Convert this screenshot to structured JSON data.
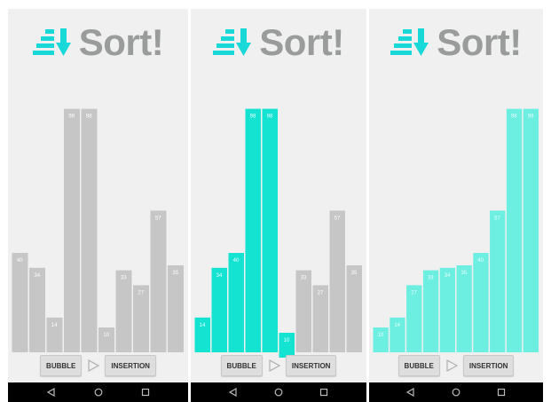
{
  "app": {
    "title": "Sort!"
  },
  "colors": {
    "background": "#f0f0f0",
    "bar_default": "#c6c6c6",
    "bar_active": "#13e3d0",
    "bar_sorted": "#6ceee0",
    "logo_icon": "#19d8d8",
    "logo_text": "#9a9c9c",
    "navbar": "#000000"
  },
  "controls": {
    "bubble_label": "BUBBLE",
    "insertion_label": "INSERTION",
    "play_icon": "play-outline-icon"
  },
  "navbar": {
    "icons": [
      "back-icon",
      "home-icon",
      "recents-icon"
    ]
  },
  "screens": [
    {
      "name": "initial",
      "bars": [
        {
          "value": 40,
          "state": "default"
        },
        {
          "value": 34,
          "state": "default"
        },
        {
          "value": 14,
          "state": "default"
        },
        {
          "value": 98,
          "state": "default"
        },
        {
          "value": 98,
          "state": "default"
        },
        {
          "value": 10,
          "state": "default"
        },
        {
          "value": 33,
          "state": "default"
        },
        {
          "value": 27,
          "state": "default"
        },
        {
          "value": 57,
          "state": "default"
        },
        {
          "value": 35,
          "state": "default"
        }
      ]
    },
    {
      "name": "sorting",
      "bars": [
        {
          "value": 14,
          "state": "active"
        },
        {
          "value": 34,
          "state": "active"
        },
        {
          "value": 40,
          "state": "active"
        },
        {
          "value": 98,
          "state": "active"
        },
        {
          "value": 98,
          "state": "active"
        },
        {
          "value": 10,
          "state": "active",
          "dropped": true
        },
        {
          "value": 33,
          "state": "default"
        },
        {
          "value": 27,
          "state": "default"
        },
        {
          "value": 57,
          "state": "default"
        },
        {
          "value": 35,
          "state": "default"
        }
      ]
    },
    {
      "name": "sorted",
      "bars": [
        {
          "value": 10,
          "state": "sorted"
        },
        {
          "value": 14,
          "state": "sorted"
        },
        {
          "value": 27,
          "state": "sorted"
        },
        {
          "value": 33,
          "state": "sorted"
        },
        {
          "value": 34,
          "state": "sorted"
        },
        {
          "value": 35,
          "state": "sorted"
        },
        {
          "value": 40,
          "state": "sorted"
        },
        {
          "value": 57,
          "state": "sorted"
        },
        {
          "value": 98,
          "state": "sorted"
        },
        {
          "value": 98,
          "state": "sorted"
        }
      ]
    }
  ]
}
